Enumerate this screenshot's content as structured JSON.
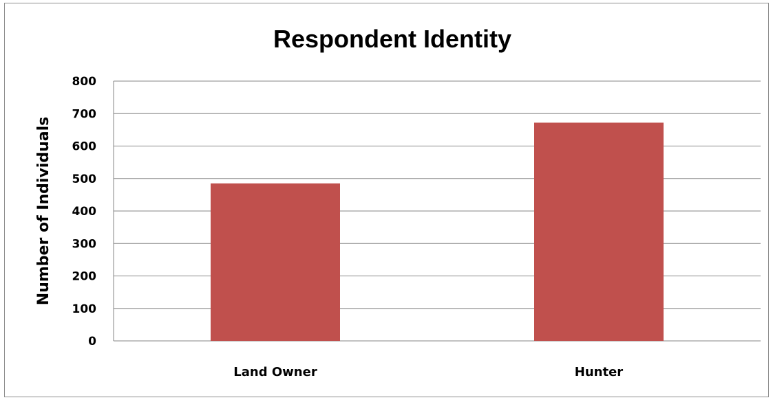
{
  "chart_data": {
    "type": "bar",
    "title": "Respondent Identity",
    "xlabel": "",
    "ylabel": "Number of Individuals",
    "categories": [
      "Land Owner",
      "Hunter"
    ],
    "values": [
      485,
      672
    ],
    "ylim": [
      0,
      800
    ],
    "yticks": [
      "0",
      "100",
      "200",
      "300",
      "400",
      "500",
      "600",
      "700",
      "800"
    ],
    "bar_color": "#c0504d",
    "grid": true,
    "legend": "none"
  }
}
